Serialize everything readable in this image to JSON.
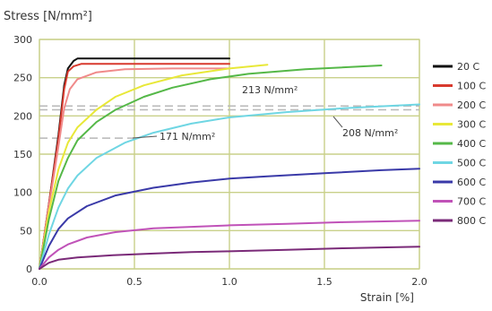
{
  "chart_data": {
    "type": "line",
    "ylabel": "Stress [N/mm²]",
    "xlabel": "Strain [%]",
    "xlim": [
      0,
      2.0
    ],
    "ylim": [
      0,
      300
    ],
    "x_ticks": [
      "0.0",
      "0.5",
      "1.0",
      "1.5",
      "2.0"
    ],
    "y_ticks": [
      "0",
      "50",
      "100",
      "150",
      "200",
      "250",
      "300"
    ],
    "x_tick_values": [
      0,
      0.5,
      1.0,
      1.5,
      2.0
    ],
    "y_tick_values": [
      0,
      50,
      100,
      150,
      200,
      250,
      300
    ],
    "grid": true,
    "legend_position": "right",
    "colors": {
      "grid": "#c9d08a",
      "plot_border": "#c9d08a",
      "reference_dash": "#b8b8b8",
      "text": "#333333"
    },
    "series": [
      {
        "name": "20 C",
        "color": "#111111",
        "points": [
          [
            0,
            0
          ],
          [
            0.05,
            85
          ],
          [
            0.1,
            175
          ],
          [
            0.13,
            240
          ],
          [
            0.15,
            262
          ],
          [
            0.18,
            272
          ],
          [
            0.2,
            275
          ],
          [
            0.3,
            275
          ],
          [
            0.6,
            275
          ],
          [
            1.0,
            275
          ]
        ]
      },
      {
        "name": "100 C",
        "color": "#d83a2e",
        "points": [
          [
            0,
            0
          ],
          [
            0.05,
            85
          ],
          [
            0.1,
            170
          ],
          [
            0.13,
            235
          ],
          [
            0.15,
            258
          ],
          [
            0.18,
            265
          ],
          [
            0.22,
            268
          ],
          [
            0.4,
            268
          ],
          [
            0.7,
            268
          ],
          [
            1.0,
            268
          ]
        ]
      },
      {
        "name": "200 C",
        "color": "#f08a8a",
        "points": [
          [
            0,
            0
          ],
          [
            0.05,
            82
          ],
          [
            0.1,
            160
          ],
          [
            0.13,
            210
          ],
          [
            0.16,
            235
          ],
          [
            0.2,
            248
          ],
          [
            0.3,
            257
          ],
          [
            0.45,
            261
          ],
          [
            0.7,
            262
          ],
          [
            1.0,
            262
          ]
        ]
      },
      {
        "name": "300 C",
        "color": "#e8e838",
        "points": [
          [
            0,
            0
          ],
          [
            0.05,
            75
          ],
          [
            0.1,
            130
          ],
          [
            0.15,
            165
          ],
          [
            0.2,
            185
          ],
          [
            0.3,
            208
          ],
          [
            0.4,
            225
          ],
          [
            0.55,
            240
          ],
          [
            0.75,
            253
          ],
          [
            1.0,
            262
          ],
          [
            1.2,
            267
          ]
        ]
      },
      {
        "name": "400 C",
        "color": "#55b848",
        "points": [
          [
            0,
            0
          ],
          [
            0.05,
            65
          ],
          [
            0.1,
            115
          ],
          [
            0.15,
            145
          ],
          [
            0.2,
            168
          ],
          [
            0.3,
            192
          ],
          [
            0.4,
            208
          ],
          [
            0.55,
            225
          ],
          [
            0.7,
            237
          ],
          [
            0.9,
            248
          ],
          [
            1.1,
            255
          ],
          [
            1.4,
            261
          ],
          [
            1.8,
            266
          ]
        ]
      },
      {
        "name": "500 C",
        "color": "#6fd6e3",
        "points": [
          [
            0,
            0
          ],
          [
            0.05,
            45
          ],
          [
            0.1,
            80
          ],
          [
            0.15,
            105
          ],
          [
            0.2,
            122
          ],
          [
            0.3,
            145
          ],
          [
            0.45,
            165
          ],
          [
            0.6,
            178
          ],
          [
            0.8,
            190
          ],
          [
            1.0,
            198
          ],
          [
            1.3,
            205
          ],
          [
            1.6,
            210
          ],
          [
            2.0,
            215
          ]
        ]
      },
      {
        "name": "600 C",
        "color": "#3a3aa8",
        "points": [
          [
            0,
            0
          ],
          [
            0.05,
            30
          ],
          [
            0.1,
            52
          ],
          [
            0.15,
            66
          ],
          [
            0.25,
            82
          ],
          [
            0.4,
            96
          ],
          [
            0.6,
            106
          ],
          [
            0.8,
            113
          ],
          [
            1.0,
            118
          ],
          [
            1.2,
            121
          ],
          [
            1.5,
            125
          ],
          [
            1.8,
            129
          ],
          [
            2.0,
            131
          ]
        ]
      },
      {
        "name": "700 C",
        "color": "#c052b8",
        "points": [
          [
            0,
            0
          ],
          [
            0.05,
            15
          ],
          [
            0.1,
            25
          ],
          [
            0.15,
            32
          ],
          [
            0.25,
            41
          ],
          [
            0.4,
            48
          ],
          [
            0.6,
            53
          ],
          [
            0.8,
            55
          ],
          [
            1.0,
            57
          ],
          [
            1.3,
            59
          ],
          [
            1.6,
            61
          ],
          [
            2.0,
            63
          ]
        ]
      },
      {
        "name": "800 C",
        "color": "#7a2a78",
        "points": [
          [
            0,
            0
          ],
          [
            0.05,
            8
          ],
          [
            0.1,
            12
          ],
          [
            0.2,
            15
          ],
          [
            0.4,
            18
          ],
          [
            0.6,
            20
          ],
          [
            0.8,
            22
          ],
          [
            1.0,
            23
          ],
          [
            1.3,
            25
          ],
          [
            1.6,
            27
          ],
          [
            2.0,
            29
          ]
        ]
      }
    ],
    "reference_lines": [
      {
        "value": 213,
        "label": "213 N/mm²"
      },
      {
        "value": 208,
        "label": "208 N/mm²"
      },
      {
        "value": 171,
        "label": "171 N/mm²"
      }
    ]
  }
}
